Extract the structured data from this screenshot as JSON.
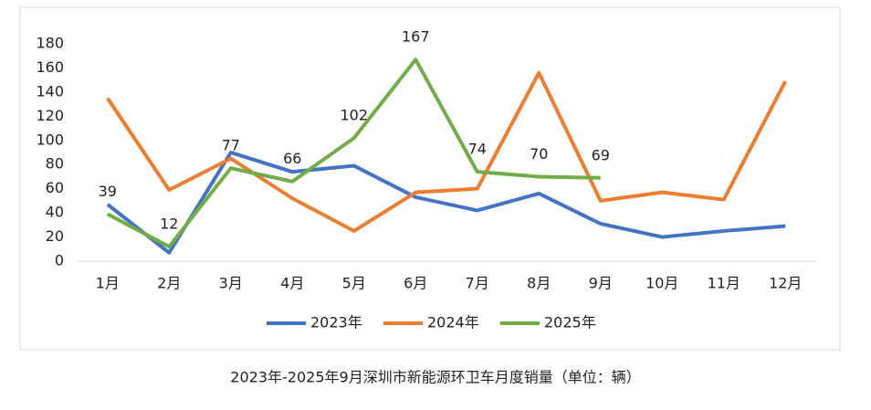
{
  "chart_data": {
    "type": "line",
    "title": "2023年-2025年9月深圳市新能源环卫车月度销量（单位：辆）",
    "categories": [
      "1月",
      "2月",
      "3月",
      "4月",
      "5月",
      "6月",
      "7月",
      "8月",
      "9月",
      "10月",
      "11月",
      "12月"
    ],
    "series": [
      {
        "name": "2023年",
        "color": "#4472c4",
        "values": [
          47,
          7,
          90,
          74,
          79,
          53,
          42,
          56,
          31,
          20,
          25,
          29
        ]
      },
      {
        "name": "2024年",
        "color": "#ed7d31",
        "values": [
          135,
          59,
          85,
          52,
          25,
          57,
          60,
          156,
          50,
          57,
          51,
          149
        ]
      },
      {
        "name": "2025年",
        "color": "#70ad47",
        "values": [
          39,
          12,
          77,
          66,
          102,
          167,
          74,
          70,
          69,
          null,
          null,
          null
        ],
        "data_labels": true
      }
    ],
    "ylim": [
      0,
      180
    ],
    "yticks": [
      0,
      20,
      40,
      60,
      80,
      100,
      120,
      140,
      160,
      180
    ],
    "grid": false,
    "legend": "bottom"
  }
}
